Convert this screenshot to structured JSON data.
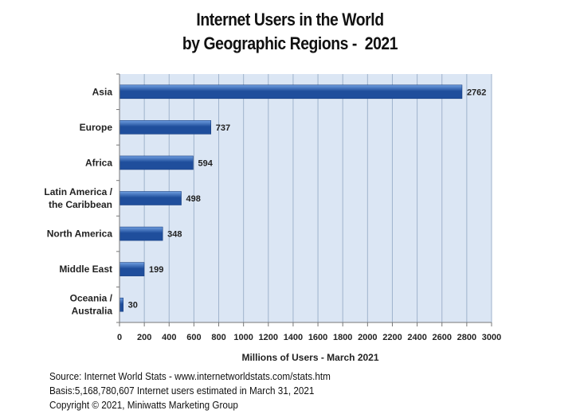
{
  "title": {
    "line1": "Internet Users in the World",
    "line2": "by Geographic Regions -  2021"
  },
  "chart_data": {
    "type": "bar",
    "orientation": "horizontal",
    "categories": [
      [
        "Asia"
      ],
      [
        "Europe"
      ],
      [
        "Africa"
      ],
      [
        "Latin America /",
        "the Caribbean"
      ],
      [
        "North America"
      ],
      [
        "Middle East"
      ],
      [
        "Oceania  /",
        "Australia"
      ]
    ],
    "values": [
      2762,
      737,
      594,
      498,
      348,
      199,
      30
    ],
    "value_labels": [
      "2762",
      "737",
      "594",
      "498",
      "348",
      "199",
      "30"
    ],
    "xlabel": "Millions of Users - March 2021",
    "xlim": [
      0,
      3000
    ],
    "xticks": [
      0,
      200,
      400,
      600,
      800,
      1000,
      1200,
      1400,
      1600,
      1800,
      2000,
      2200,
      2400,
      2600,
      2800,
      3000
    ],
    "grid": true,
    "colors": {
      "plot_bg": "#dbe6f4",
      "bar_dark": "#1f4e9c",
      "bar_light": "#6f9ee0",
      "grid": "#9fb3cc"
    }
  },
  "footer": {
    "source": "Source: Internet World Stats - www.internetworldstats.com/stats.htm",
    "basis": "Basis:5,168,780,607 Internet users estimated in March 31, 2021",
    "copyright": "Copyright © 2021, Miniwatts Marketing Group"
  }
}
